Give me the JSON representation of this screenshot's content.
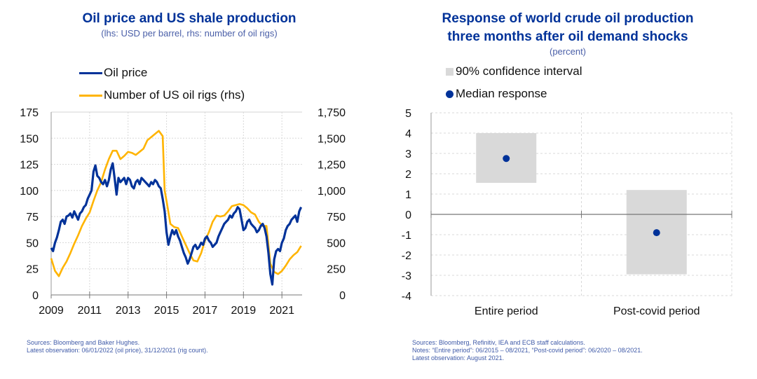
{
  "charts": {
    "left": {
      "title": "Oil price and US shale production",
      "subtitle": "(lhs: USD per barrel, rhs: number of oil rigs)",
      "legend": [
        {
          "label": "Oil price",
          "color": "#003299"
        },
        {
          "label": "Number of US oil rigs (rhs)",
          "color": "#ffb400"
        }
      ],
      "footnotes": [
        "Sources: Bloomberg and Baker Hughes.",
        "Latest observation: 06/01/2022 (oil price), 31/12/2021 (rig count)."
      ]
    },
    "right": {
      "title_line1": "Response of world crude oil production",
      "title_line2": "three months after oil demand shocks",
      "subtitle": "(percent)",
      "legend": [
        {
          "label": "90% confidence interval",
          "color": "#d9d9d9"
        },
        {
          "label": "Median response",
          "color": "#003299"
        }
      ],
      "footnotes": [
        "Sources: Bloomberg, Refinitiv, IEA and ECB staff calculations.",
        "Notes: “Entire period”: 06/2015 – 08/2021, “Post-covid period”: 06/2020 – 08/2021.",
        "Latest observation: August 2021."
      ]
    }
  },
  "chart_data": [
    {
      "type": "line",
      "title": "Oil price and US shale production",
      "subtitle": "(lhs: USD per barrel, rhs: number of oil rigs)",
      "xlabel": "",
      "ylabel": "USD per barrel",
      "y2label": "number of oil rigs",
      "x_ticks": [
        "2009",
        "2011",
        "2013",
        "2015",
        "2017",
        "2019",
        "2021"
      ],
      "xlim": [
        2009.0,
        2022.05
      ],
      "ylim": [
        0,
        175
      ],
      "y_ticks": [
        "0",
        "25",
        "50",
        "75",
        "100",
        "125",
        "150",
        "175"
      ],
      "y2lim": [
        0,
        1750
      ],
      "y2_ticks": [
        "0",
        "250",
        "500",
        "750",
        "1,000",
        "1,250",
        "1,500",
        "1,750"
      ],
      "grid": true,
      "legend_position": "top-left",
      "series": [
        {
          "name": "Oil price",
          "axis": "left",
          "color": "#003299",
          "x": [
            2009.0,
            2009.1,
            2009.2,
            2009.3,
            2009.4,
            2009.5,
            2009.6,
            2009.7,
            2009.8,
            2009.9,
            2010.0,
            2010.1,
            2010.2,
            2010.3,
            2010.4,
            2010.5,
            2010.6,
            2010.7,
            2010.8,
            2010.9,
            2011.0,
            2011.1,
            2011.2,
            2011.3,
            2011.4,
            2011.5,
            2011.6,
            2011.7,
            2011.8,
            2011.9,
            2012.0,
            2012.1,
            2012.2,
            2012.3,
            2012.4,
            2012.5,
            2012.6,
            2012.7,
            2012.8,
            2012.9,
            2013.0,
            2013.1,
            2013.2,
            2013.3,
            2013.4,
            2013.5,
            2013.6,
            2013.7,
            2013.8,
            2013.9,
            2014.0,
            2014.1,
            2014.2,
            2014.3,
            2014.4,
            2014.5,
            2014.6,
            2014.7,
            2014.8,
            2014.9,
            2015.0,
            2015.1,
            2015.2,
            2015.3,
            2015.4,
            2015.5,
            2015.6,
            2015.7,
            2015.8,
            2015.9,
            2016.0,
            2016.1,
            2016.2,
            2016.3,
            2016.4,
            2016.5,
            2016.6,
            2016.7,
            2016.8,
            2016.9,
            2017.0,
            2017.1,
            2017.2,
            2017.3,
            2017.4,
            2017.5,
            2017.6,
            2017.7,
            2017.8,
            2017.9,
            2018.0,
            2018.1,
            2018.2,
            2018.3,
            2018.4,
            2018.5,
            2018.6,
            2018.7,
            2018.8,
            2018.9,
            2019.0,
            2019.1,
            2019.2,
            2019.3,
            2019.4,
            2019.5,
            2019.6,
            2019.7,
            2019.8,
            2019.9,
            2020.0,
            2020.1,
            2020.2,
            2020.3,
            2020.4,
            2020.5,
            2020.6,
            2020.7,
            2020.8,
            2020.9,
            2021.0,
            2021.1,
            2021.2,
            2021.3,
            2021.4,
            2021.5,
            2021.6,
            2021.7,
            2021.8,
            2021.9,
            2022.0
          ],
          "values": [
            45,
            42,
            50,
            55,
            62,
            70,
            72,
            68,
            75,
            76,
            78,
            74,
            80,
            76,
            72,
            78,
            80,
            84,
            86,
            92,
            96,
            100,
            118,
            124,
            114,
            112,
            108,
            106,
            110,
            104,
            110,
            120,
            126,
            112,
            96,
            112,
            108,
            110,
            112,
            106,
            112,
            110,
            104,
            102,
            108,
            110,
            106,
            112,
            110,
            108,
            106,
            104,
            108,
            106,
            110,
            108,
            104,
            102,
            92,
            80,
            60,
            48,
            56,
            62,
            58,
            62,
            56,
            52,
            46,
            40,
            36,
            30,
            34,
            40,
            46,
            48,
            44,
            46,
            50,
            48,
            54,
            56,
            52,
            50,
            46,
            48,
            50,
            56,
            60,
            64,
            68,
            70,
            72,
            76,
            74,
            78,
            80,
            84,
            82,
            72,
            62,
            64,
            70,
            72,
            68,
            66,
            64,
            60,
            62,
            66,
            68,
            64,
            56,
            40,
            20,
            10,
            34,
            42,
            44,
            42,
            50,
            54,
            62,
            66,
            68,
            72,
            74,
            76,
            70,
            80,
            84
          ]
        },
        {
          "name": "Number of US oil rigs (rhs)",
          "axis": "right",
          "color": "#ffb400",
          "x": [
            2009.0,
            2009.2,
            2009.4,
            2009.6,
            2009.8,
            2010.0,
            2010.2,
            2010.4,
            2010.6,
            2010.8,
            2011.0,
            2011.2,
            2011.4,
            2011.6,
            2011.8,
            2012.0,
            2012.2,
            2012.4,
            2012.6,
            2012.8,
            2013.0,
            2013.2,
            2013.4,
            2013.6,
            2013.8,
            2014.0,
            2014.2,
            2014.4,
            2014.6,
            2014.8,
            2014.9,
            2015.0,
            2015.2,
            2015.4,
            2015.6,
            2015.8,
            2016.0,
            2016.2,
            2016.4,
            2016.6,
            2016.8,
            2017.0,
            2017.2,
            2017.4,
            2017.6,
            2017.8,
            2018.0,
            2018.2,
            2018.4,
            2018.6,
            2018.8,
            2019.0,
            2019.2,
            2019.4,
            2019.6,
            2019.8,
            2020.0,
            2020.2,
            2020.4,
            2020.6,
            2020.8,
            2021.0,
            2021.2,
            2021.4,
            2021.6,
            2021.8,
            2022.0
          ],
          "values": [
            350,
            230,
            180,
            260,
            320,
            400,
            490,
            570,
            660,
            730,
            790,
            900,
            1000,
            1080,
            1200,
            1300,
            1380,
            1380,
            1300,
            1330,
            1370,
            1360,
            1340,
            1370,
            1400,
            1480,
            1510,
            1540,
            1570,
            1520,
            1000,
            900,
            680,
            650,
            640,
            560,
            480,
            400,
            330,
            320,
            400,
            520,
            600,
            700,
            760,
            750,
            760,
            800,
            850,
            860,
            870,
            860,
            830,
            790,
            770,
            700,
            660,
            660,
            300,
            220,
            200,
            230,
            280,
            340,
            380,
            410,
            470
          ]
        }
      ]
    },
    {
      "type": "scatter",
      "title": "Response of world crude oil production three months after oil demand shocks",
      "subtitle": "(percent)",
      "xlabel": "",
      "ylabel": "percent",
      "categories": [
        "Entire period",
        "Post-covid period"
      ],
      "ylim": [
        -4,
        5
      ],
      "y_ticks": [
        "-4",
        "-3",
        "-2",
        "-1",
        "0",
        "1",
        "2",
        "3",
        "4",
        "5"
      ],
      "grid": true,
      "legend_position": "top-left",
      "series": [
        {
          "name": "90% confidence interval",
          "type": "range-bar",
          "color": "#d9d9d9",
          "low": [
            1.55,
            -2.95
          ],
          "high": [
            4.0,
            1.2
          ]
        },
        {
          "name": "Median response",
          "type": "scatter",
          "color": "#003299",
          "values": [
            2.75,
            -0.9
          ]
        }
      ]
    }
  ]
}
